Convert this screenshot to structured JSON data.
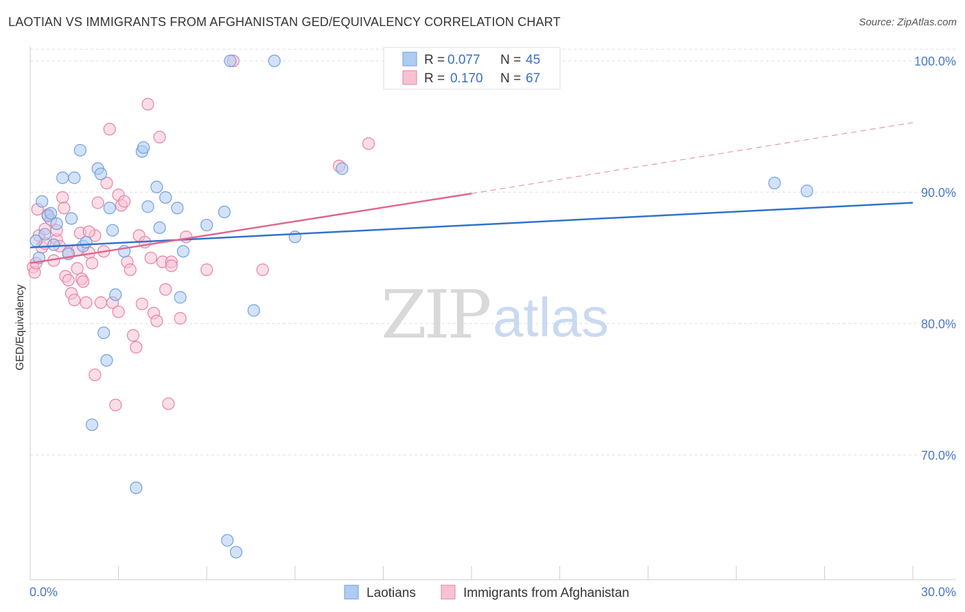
{
  "title": "LAOTIAN VS IMMIGRANTS FROM AFGHANISTAN GED/EQUIVALENCY CORRELATION CHART",
  "source": "Source: ZipAtlas.com",
  "watermark": {
    "zip": "ZIP",
    "atlas": "atlas"
  },
  "colors": {
    "blue": "#6f9fe0",
    "blue_fill": "#aecbf2",
    "pink": "#ea7fa2",
    "pink_fill": "#f6c2d3",
    "blue_line": "#3371cc",
    "pink_line": "#e0678f",
    "tick": "#4a78c8"
  },
  "chart_data": {
    "type": "scatter",
    "title": "LAOTIAN VS IMMIGRANTS FROM AFGHANISTAN GED/EQUIVALENCY CORRELATION CHART",
    "xlabel": "",
    "ylabel": "GED/Equivalency",
    "xlim": [
      0,
      30
    ],
    "ylim": [
      60.5,
      101.5
    ],
    "x_tick_labels": {
      "min": "0.0%",
      "max": "30.0%"
    },
    "y_ticks": [
      {
        "value": 100,
        "label": "100.0%"
      },
      {
        "value": 90,
        "label": "90.0%"
      },
      {
        "value": 80,
        "label": "80.0%"
      },
      {
        "value": 70,
        "label": "70.0%"
      }
    ],
    "legend": [
      {
        "name": "Laotians",
        "r_label": "R =",
        "r": "0.077",
        "n_label": "N =",
        "n": "45"
      },
      {
        "name": "Immigrants from Afghanistan",
        "r_label": "R =",
        "r": "0.170",
        "n_label": "N =",
        "n": "67"
      }
    ],
    "series": [
      {
        "name": "Laotians",
        "trend": {
          "x": [
            0,
            30
          ],
          "y": [
            85.8,
            89.2
          ],
          "dashed_from": null
        },
        "points": [
          [
            0.2,
            86.3
          ],
          [
            0.3,
            85.0
          ],
          [
            0.4,
            89.3
          ],
          [
            0.5,
            86.8
          ],
          [
            0.6,
            88.2
          ],
          [
            0.7,
            88.4
          ],
          [
            0.8,
            86.0
          ],
          [
            0.9,
            87.6
          ],
          [
            1.1,
            91.1
          ],
          [
            1.3,
            85.3
          ],
          [
            1.4,
            88.0
          ],
          [
            1.5,
            91.1
          ],
          [
            1.7,
            93.2
          ],
          [
            1.8,
            85.9
          ],
          [
            1.9,
            86.2
          ],
          [
            2.1,
            72.3
          ],
          [
            2.3,
            91.8
          ],
          [
            2.4,
            91.4
          ],
          [
            2.5,
            79.3
          ],
          [
            2.6,
            77.2
          ],
          [
            2.7,
            88.8
          ],
          [
            2.8,
            87.1
          ],
          [
            2.9,
            82.2
          ],
          [
            3.2,
            85.5
          ],
          [
            3.6,
            67.5
          ],
          [
            3.8,
            93.1
          ],
          [
            3.85,
            93.4
          ],
          [
            4.0,
            88.9
          ],
          [
            4.3,
            90.4
          ],
          [
            4.4,
            87.3
          ],
          [
            4.6,
            89.6
          ],
          [
            5.0,
            88.8
          ],
          [
            5.1,
            82.0
          ],
          [
            5.2,
            85.5
          ],
          [
            6.0,
            87.5
          ],
          [
            6.6,
            88.5
          ],
          [
            6.7,
            63.5
          ],
          [
            6.8,
            100.0
          ],
          [
            7.0,
            62.6
          ],
          [
            7.6,
            81.0
          ],
          [
            8.3,
            100.0
          ],
          [
            9.0,
            86.6
          ],
          [
            10.6,
            91.8
          ],
          [
            25.3,
            90.7
          ],
          [
            26.4,
            90.1
          ]
        ]
      },
      {
        "name": "Immigrants from Afghanistan",
        "trend": {
          "x": [
            0,
            15,
            30
          ],
          "y": [
            84.6,
            89.9,
            95.3
          ],
          "dashed_from": 15
        },
        "points": [
          [
            0.1,
            84.3
          ],
          [
            0.15,
            83.9
          ],
          [
            0.2,
            84.6
          ],
          [
            0.3,
            86.7
          ],
          [
            0.4,
            85.8
          ],
          [
            0.5,
            86.1
          ],
          [
            0.6,
            88.3
          ],
          [
            0.7,
            87.9
          ],
          [
            0.8,
            84.8
          ],
          [
            0.9,
            86.4
          ],
          [
            1.0,
            85.9
          ],
          [
            1.1,
            89.6
          ],
          [
            1.15,
            88.8
          ],
          [
            1.2,
            83.6
          ],
          [
            1.3,
            83.3
          ],
          [
            1.4,
            82.3
          ],
          [
            1.5,
            81.8
          ],
          [
            1.6,
            84.2
          ],
          [
            1.7,
            86.9
          ],
          [
            1.75,
            83.4
          ],
          [
            1.8,
            83.2
          ],
          [
            1.9,
            81.6
          ],
          [
            2.0,
            85.4
          ],
          [
            2.1,
            84.6
          ],
          [
            2.2,
            86.7
          ],
          [
            2.3,
            89.2
          ],
          [
            2.4,
            81.6
          ],
          [
            2.5,
            85.5
          ],
          [
            2.6,
            90.7
          ],
          [
            2.7,
            94.8
          ],
          [
            2.8,
            81.6
          ],
          [
            2.9,
            73.8
          ],
          [
            3.0,
            89.8
          ],
          [
            3.1,
            89.0
          ],
          [
            3.2,
            89.3
          ],
          [
            3.3,
            84.7
          ],
          [
            3.4,
            84.1
          ],
          [
            3.5,
            79.1
          ],
          [
            3.6,
            78.2
          ],
          [
            3.7,
            86.7
          ],
          [
            3.8,
            81.5
          ],
          [
            3.9,
            86.2
          ],
          [
            4.0,
            96.7
          ],
          [
            4.1,
            85.0
          ],
          [
            4.2,
            80.8
          ],
          [
            4.3,
            80.2
          ],
          [
            4.4,
            94.2
          ],
          [
            4.5,
            84.7
          ],
          [
            4.6,
            82.6
          ],
          [
            4.7,
            73.9
          ],
          [
            4.8,
            84.7
          ],
          [
            5.1,
            80.4
          ],
          [
            5.3,
            86.6
          ],
          [
            6.0,
            84.1
          ],
          [
            6.9,
            100.0
          ],
          [
            7.9,
            84.1
          ],
          [
            10.5,
            92.0
          ],
          [
            11.5,
            93.7
          ],
          [
            2.2,
            76.1
          ],
          [
            0.25,
            88.7
          ],
          [
            0.9,
            87.1
          ],
          [
            1.3,
            85.4
          ],
          [
            3.0,
            80.9
          ],
          [
            0.5,
            87.2
          ],
          [
            1.6,
            85.6
          ],
          [
            4.8,
            84.4
          ],
          [
            2.0,
            87.0
          ]
        ]
      }
    ]
  }
}
